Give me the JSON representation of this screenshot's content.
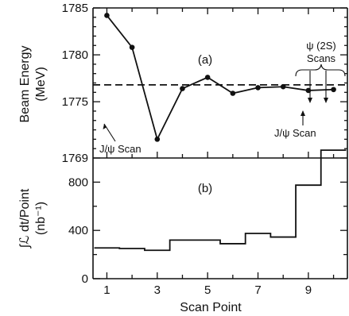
{
  "chart_data": [
    {
      "type": "line",
      "panel_label": "(a)",
      "ylabel_lines": [
        "Beam Energy",
        "(MeV)"
      ],
      "ylim": [
        1769,
        1785
      ],
      "yticks": [
        1769,
        1775,
        1780,
        1785
      ],
      "x": [
        1,
        2,
        3,
        4,
        5,
        6,
        7,
        8,
        9,
        10
      ],
      "series": [
        {
          "values": [
            1784.2,
            1780.8,
            1771.0,
            1776.4,
            1777.6,
            1775.9,
            1776.5,
            1776.6,
            1776.2,
            1776.3
          ],
          "points": [
            1,
            2,
            3,
            4,
            5,
            6,
            7,
            8,
            9,
            10
          ]
        }
      ],
      "reference_line": {
        "value": 1776.8,
        "style": "dashed"
      },
      "annotations": [
        {
          "text": "J/ψ Scan",
          "position": "bottom-left"
        },
        {
          "text": "J/ψ Scan",
          "position": "bottom-right"
        },
        {
          "text_lines": [
            "ψ (2S)",
            "Scans"
          ],
          "position": "top-right"
        }
      ],
      "grid": false
    },
    {
      "type": "step",
      "panel_label": "(b)",
      "ylabel_lines": [
        "∫ℒ dt/Point",
        "(nb⁻¹)"
      ],
      "ylim": [
        0,
        1000
      ],
      "yticks": [
        0,
        400,
        800
      ],
      "xlabel": "Scan Point",
      "xticks": [
        1,
        3,
        5,
        7,
        9
      ],
      "bins": [
        {
          "x": 1,
          "value": 255
        },
        {
          "x": 2,
          "value": 250
        },
        {
          "x": 3,
          "value": 235
        },
        {
          "x": 4,
          "value": 320
        },
        {
          "x": 5,
          "value": 320
        },
        {
          "x": 6,
          "value": 290
        },
        {
          "x": 7,
          "value": 375
        },
        {
          "x": 8,
          "value": 345
        },
        {
          "x": 9,
          "value": 775
        },
        {
          "x": 10,
          "value": 1065
        }
      ],
      "grid": false
    }
  ]
}
